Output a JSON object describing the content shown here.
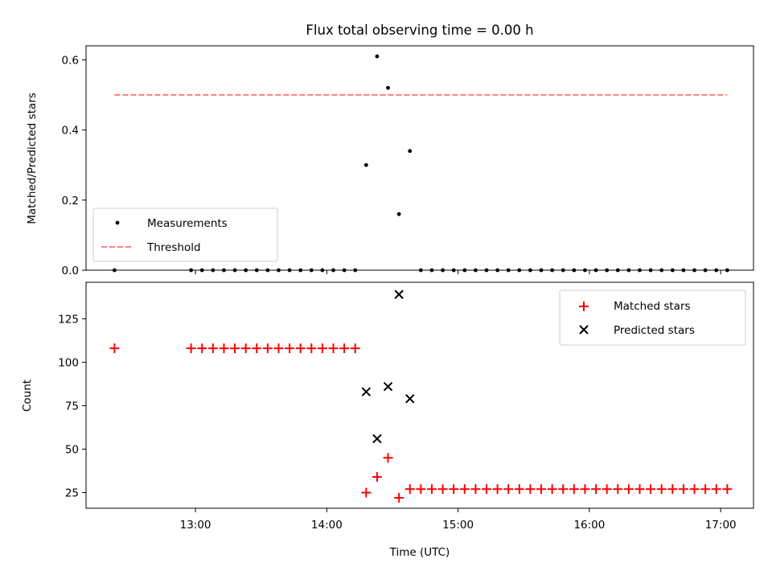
{
  "title": "Flux total observing time = 0.00 h",
  "colors": {
    "measurement": "#000000",
    "threshold": "#ff7f7f",
    "matched": "#ff0000",
    "predicted": "#000000"
  },
  "chart_data": [
    {
      "type": "scatter",
      "ylabel": "Matched/Predicted stars",
      "ylim": [
        0,
        0.64
      ],
      "yticks": [
        0.0,
        0.2,
        0.4,
        0.6
      ],
      "ytick_labels": [
        "0.0",
        "0.2",
        "0.4",
        "0.6"
      ],
      "xlim": [
        "12:10",
        "17:15"
      ],
      "legend": {
        "position": "lower-left",
        "entries": [
          "Measurements",
          "Threshold"
        ]
      },
      "threshold": {
        "name": "Threshold",
        "y": 0.5,
        "x": [
          "12:23",
          "17:03"
        ]
      },
      "series": [
        {
          "name": "Measurements",
          "x": [
            "12:23",
            "12:58",
            "13:03",
            "13:08",
            "13:13",
            "13:18",
            "13:23",
            "13:28",
            "13:33",
            "13:38",
            "13:43",
            "13:48",
            "13:53",
            "13:58",
            "14:03",
            "14:08",
            "14:13",
            "14:18",
            "14:23",
            "14:28",
            "14:33",
            "14:38",
            "14:43",
            "14:48",
            "14:53",
            "14:58",
            "15:03",
            "15:08",
            "15:13",
            "15:18",
            "15:23",
            "15:28",
            "15:33",
            "15:38",
            "15:43",
            "15:48",
            "15:53",
            "15:58",
            "16:03",
            "16:08",
            "16:13",
            "16:18",
            "16:23",
            "16:28",
            "16:33",
            "16:38",
            "16:43",
            "16:48",
            "16:53",
            "16:58",
            "17:03"
          ],
          "y": [
            0,
            0,
            0,
            0,
            0,
            0,
            0,
            0,
            0,
            0,
            0,
            0,
            0,
            0,
            0,
            0,
            0,
            0.3,
            0.61,
            0.52,
            0.16,
            0.34,
            0,
            0,
            0,
            0,
            0,
            0,
            0,
            0,
            0,
            0,
            0,
            0,
            0,
            0,
            0,
            0,
            0,
            0,
            0,
            0,
            0,
            0,
            0,
            0,
            0,
            0,
            0,
            0,
            0
          ]
        }
      ]
    },
    {
      "type": "scatter",
      "xlabel": "Time (UTC)",
      "ylabel": "Count",
      "ylim": [
        16,
        146
      ],
      "yticks": [
        25,
        50,
        75,
        100,
        125
      ],
      "ytick_labels": [
        "25",
        "50",
        "75",
        "100",
        "125"
      ],
      "xlim": [
        "12:10",
        "17:15"
      ],
      "xticks": [
        "13:00",
        "14:00",
        "15:00",
        "16:00",
        "17:00"
      ],
      "xtick_labels": [
        "13:00",
        "14:00",
        "15:00",
        "16:00",
        "17:00"
      ],
      "legend": {
        "position": "top-right",
        "entries": [
          "Matched stars",
          "Predicted stars"
        ]
      },
      "series": [
        {
          "name": "Matched stars",
          "x": [
            "12:23",
            "12:58",
            "13:03",
            "13:08",
            "13:13",
            "13:18",
            "13:23",
            "13:28",
            "13:33",
            "13:38",
            "13:43",
            "13:48",
            "13:53",
            "13:58",
            "14:03",
            "14:08",
            "14:13",
            "14:18",
            "14:23",
            "14:28",
            "14:33",
            "14:38",
            "14:43",
            "14:48",
            "14:53",
            "14:58",
            "15:03",
            "15:08",
            "15:13",
            "15:18",
            "15:23",
            "15:28",
            "15:33",
            "15:38",
            "15:43",
            "15:48",
            "15:53",
            "15:58",
            "16:03",
            "16:08",
            "16:13",
            "16:18",
            "16:23",
            "16:28",
            "16:33",
            "16:38",
            "16:43",
            "16:48",
            "16:53",
            "16:58",
            "17:03"
          ],
          "y": [
            108,
            108,
            108,
            108,
            108,
            108,
            108,
            108,
            108,
            108,
            108,
            108,
            108,
            108,
            108,
            108,
            108,
            25,
            34,
            45,
            22,
            27,
            27,
            27,
            27,
            27,
            27,
            27,
            27,
            27,
            27,
            27,
            27,
            27,
            27,
            27,
            27,
            27,
            27,
            27,
            27,
            27,
            27,
            27,
            27,
            27,
            27,
            27,
            27,
            27,
            27
          ]
        },
        {
          "name": "Predicted stars",
          "x": [
            "14:18",
            "14:23",
            "14:28",
            "14:33",
            "14:38"
          ],
          "y": [
            83,
            56,
            86,
            139,
            79
          ]
        }
      ]
    }
  ]
}
